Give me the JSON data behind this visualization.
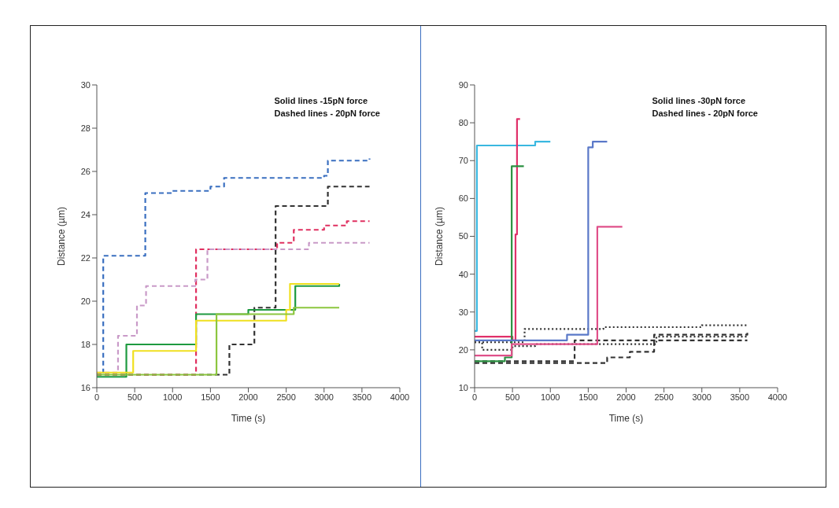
{
  "chart_data": [
    {
      "type": "step",
      "xlabel": "Time (s)",
      "ylabel": "Distance (µm)",
      "annotations": [
        "Solid lines -15pN force",
        "Dashed lines - 20pN force"
      ],
      "xlim": [
        0,
        4000
      ],
      "xticks": [
        0,
        500,
        1000,
        1500,
        2000,
        2500,
        3000,
        3500,
        4000
      ],
      "ylim": [
        16,
        30
      ],
      "yticks": [
        16,
        18,
        20,
        22,
        24,
        26,
        28,
        30
      ],
      "marker": "none",
      "series": [
        {
          "color": "#3a6fc0",
          "line_style": "dashed",
          "x": [
            0,
            85,
            640,
            1000,
            1500,
            1680,
            3000,
            3050,
            3600
          ],
          "values": [
            16.6,
            22.1,
            25.0,
            25.1,
            25.3,
            25.7,
            25.8,
            26.5,
            26.6
          ]
        },
        {
          "color": "#333333",
          "line_style": "dashed",
          "x": [
            0,
            1750,
            2080,
            2360,
            3050,
            3600
          ],
          "values": [
            16.6,
            18.0,
            19.7,
            24.4,
            25.3,
            25.3
          ]
        },
        {
          "color": "#e03060",
          "line_style": "dashed",
          "x": [
            0,
            1310,
            2380,
            2600,
            3000,
            3300,
            3600
          ],
          "values": [
            16.6,
            22.4,
            22.7,
            23.3,
            23.5,
            23.7,
            23.7
          ]
        },
        {
          "color": "#c99ac8",
          "line_style": "dashed",
          "x": [
            0,
            280,
            530,
            650,
            1300,
            1460,
            2800,
            3600
          ],
          "values": [
            16.7,
            18.4,
            19.8,
            20.7,
            21.0,
            22.4,
            22.7,
            22.7
          ]
        },
        {
          "color": "#1e9a40",
          "line_style": "solid",
          "x": [
            0,
            390,
            1310,
            2000,
            2620,
            3200
          ],
          "values": [
            16.5,
            18.0,
            19.4,
            19.6,
            20.7,
            20.8
          ]
        },
        {
          "color": "#f0e020",
          "line_style": "solid",
          "x": [
            0,
            480,
            1310,
            2500,
            2550,
            3200
          ],
          "values": [
            16.7,
            17.7,
            19.1,
            19.6,
            20.8,
            20.8
          ]
        },
        {
          "color": "#8cc63f",
          "line_style": "solid",
          "x": [
            0,
            1580,
            2600,
            3200
          ],
          "values": [
            16.6,
            19.4,
            19.7,
            19.7
          ]
        }
      ]
    },
    {
      "type": "step",
      "xlabel": "Time (s)",
      "ylabel": "Distance (µm)",
      "annotations": [
        "Solid lines -30pN force",
        "Dashed lines - 20pN force"
      ],
      "xlim": [
        0,
        4000
      ],
      "xticks": [
        0,
        500,
        1000,
        1500,
        2000,
        2500,
        3000,
        3500,
        4000
      ],
      "ylim": [
        10,
        90
      ],
      "yticks": [
        10,
        20,
        30,
        40,
        50,
        60,
        70,
        80,
        90
      ],
      "marker": "none",
      "series": [
        {
          "color": "#333333",
          "line_style": "dotted",
          "x": [
            0,
            660,
            1700,
            3000,
            3600
          ],
          "values": [
            22,
            25.5,
            26,
            26.5,
            26.5
          ]
        },
        {
          "color": "#333333",
          "line_style": "dashed",
          "x": [
            0,
            1320,
            3600
          ],
          "values": [
            17,
            22.5,
            22.5
          ]
        },
        {
          "color": "#333333",
          "line_style": "dashed",
          "x": [
            0,
            1750,
            2050,
            2370,
            3600
          ],
          "values": [
            16.5,
            18,
            19.5,
            24,
            24.5
          ]
        },
        {
          "color": "#333333",
          "line_style": "dotted",
          "x": [
            0,
            100,
            500,
            800,
            2400,
            3600
          ],
          "values": [
            22,
            20,
            21,
            21.5,
            23.5,
            23.5
          ]
        },
        {
          "color": "#3ab8e0",
          "line_style": "solid",
          "x": [
            0,
            30,
            800,
            1000
          ],
          "values": [
            25,
            74,
            75,
            75
          ]
        },
        {
          "color": "#e0306a",
          "line_style": "solid",
          "x": [
            0,
            500,
            540,
            560,
            600
          ],
          "values": [
            23.5,
            22.5,
            50.5,
            81,
            81
          ]
        },
        {
          "color": "#2a9040",
          "line_style": "solid",
          "x": [
            0,
            400,
            490,
            650
          ],
          "values": [
            17,
            18,
            68.5,
            68.5
          ]
        },
        {
          "color": "#5a78c8",
          "line_style": "solid",
          "x": [
            0,
            1220,
            1500,
            1560,
            1750
          ],
          "values": [
            22.5,
            24,
            73.5,
            75,
            75
          ]
        },
        {
          "color": "#e0508a",
          "line_style": "solid",
          "x": [
            0,
            490,
            1620,
            1950
          ],
          "values": [
            18.5,
            21.5,
            52.5,
            52.5
          ]
        }
      ]
    }
  ]
}
